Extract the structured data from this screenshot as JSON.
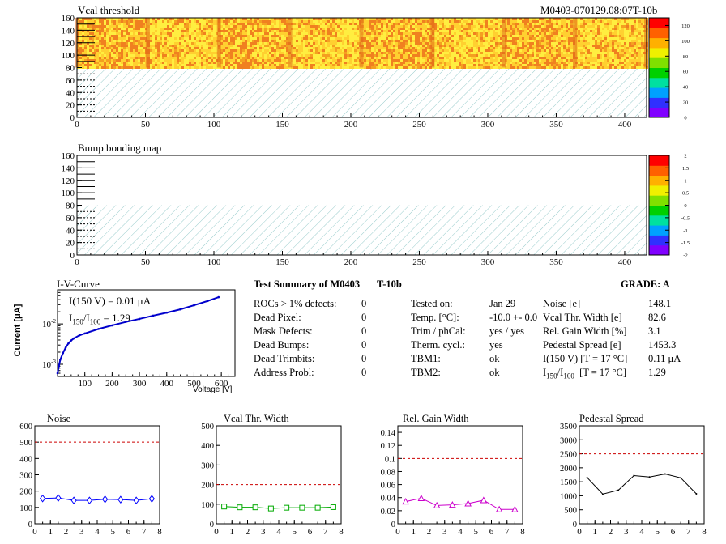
{
  "header": {
    "title": "Vcal threshold",
    "module_id": "M0403-070129.08:07T-10b"
  },
  "bump_map": {
    "title": "Bump bonding map"
  },
  "iv": {
    "title": "I-V-Curve",
    "i150": "I(150 V) = 0.01 μA",
    "ratio_prefix": "I",
    "ratio_sub1": "150",
    "ratio_mid": "/I",
    "ratio_sub2": "100",
    "ratio_value": " = 1.29",
    "ylabel": "Current [μA]",
    "xlabel": "Voltage [V]"
  },
  "summary": {
    "title": "Test Summary of M0403",
    "temp_tag": "T-10b",
    "grade_label": "GRADE:  A",
    "defects": [
      {
        "label": "ROCs > 1% defects:",
        "value": "0"
      },
      {
        "label": "Dead Pixel:",
        "value": "0"
      },
      {
        "label": "Mask Defects:",
        "value": "0"
      },
      {
        "label": "Dead Bumps:",
        "value": "0"
      },
      {
        "label": "Dead Trimbits:",
        "value": "0"
      },
      {
        "label": "Address Probl:",
        "value": "0"
      }
    ],
    "conditions": [
      {
        "label": "Tested on:",
        "value": "Jan 29"
      },
      {
        "label": "Temp. [°C]:",
        "value": "-10.0 +- 0.0"
      },
      {
        "label": "Trim / phCal:",
        "value": "yes / yes"
      },
      {
        "label": "Therm. cycl.:",
        "value": "yes"
      },
      {
        "label": "TBM1:",
        "value": "ok"
      },
      {
        "label": "TBM2:",
        "value": "ok"
      }
    ],
    "results": [
      {
        "label": "Noise [e]",
        "value": "148.1"
      },
      {
        "label": "Vcal Thr. Width [e]",
        "value": "82.6"
      },
      {
        "label": "Rel. Gain Width [%]",
        "value": "3.1"
      },
      {
        "label": "Pedestal Spread [e]",
        "value": "1453.3"
      },
      {
        "label": "I(150 V) [T = 17 °C]",
        "value": "0.11 μA"
      },
      {
        "label_prefix": "I",
        "label_sub1": "150",
        "label_mid": "/I",
        "label_sub2": "100",
        "label_suffix": "  [T = 17 °C]",
        "value": "1.29"
      }
    ]
  },
  "chart_data": [
    {
      "type": "heatmap",
      "title": "Vcal threshold",
      "xlim": [
        0,
        416
      ],
      "ylim": [
        0,
        160
      ],
      "x_ticks": [
        0,
        50,
        100,
        150,
        200,
        250,
        300,
        350,
        400
      ],
      "y_ticks": [
        0,
        20,
        40,
        60,
        80,
        100,
        120,
        140,
        160
      ],
      "filled_region_y": [
        80,
        160
      ],
      "colorbar": {
        "min": 0,
        "max": 130,
        "ticks": [
          0,
          20,
          40,
          60,
          80,
          100,
          120
        ]
      }
    },
    {
      "type": "heatmap",
      "title": "Bump bonding map",
      "xlim": [
        0,
        416
      ],
      "ylim": [
        0,
        160
      ],
      "x_ticks": [
        0,
        50,
        100,
        150,
        200,
        250,
        300,
        350,
        400
      ],
      "y_ticks": [
        0,
        20,
        40,
        60,
        80,
        100,
        120,
        140,
        160
      ],
      "colorbar": {
        "min": -2,
        "max": 2,
        "ticks": [
          -2,
          -1.5,
          -1,
          -0.5,
          0,
          0.5,
          1,
          1.5,
          2
        ]
      }
    },
    {
      "type": "line",
      "title": "I-V-Curve",
      "xlabel": "Voltage [V]",
      "ylabel": "Current [μA]",
      "log_y": true,
      "xlim": [
        0,
        650
      ],
      "ylim": [
        0.0005,
        0.07
      ],
      "x_ticks": [
        100,
        200,
        300,
        400,
        500,
        600
      ],
      "y_ticks": [
        0.001,
        0.01
      ],
      "series": [
        {
          "x": [
            0,
            5,
            10,
            20,
            30,
            40,
            50,
            60,
            80,
            100,
            150,
            200,
            250,
            300,
            350,
            400,
            450,
            500,
            550,
            590
          ],
          "y": [
            0.0006,
            0.0009,
            0.0013,
            0.0019,
            0.0026,
            0.0033,
            0.0039,
            0.0044,
            0.0052,
            0.0058,
            0.0075,
            0.0092,
            0.0112,
            0.0133,
            0.016,
            0.019,
            0.023,
            0.029,
            0.037,
            0.046
          ]
        }
      ]
    },
    {
      "type": "line",
      "title": "Noise",
      "xlim": [
        0,
        8
      ],
      "ylim": [
        0,
        600
      ],
      "x_ticks": [
        0,
        1,
        2,
        3,
        4,
        5,
        6,
        7,
        8
      ],
      "y_ticks": [
        0,
        100,
        200,
        300,
        400,
        500,
        600
      ],
      "threshold": 500,
      "marker": "diamond",
      "color": "#0000ff",
      "series": [
        {
          "x": [
            0.5,
            1.5,
            2.5,
            3.5,
            4.5,
            5.5,
            6.5,
            7.5
          ],
          "y": [
            155,
            158,
            143,
            143,
            150,
            148,
            143,
            153
          ]
        }
      ]
    },
    {
      "type": "line",
      "title": "Vcal Thr. Width",
      "xlim": [
        0,
        8
      ],
      "ylim": [
        0,
        500
      ],
      "x_ticks": [
        0,
        1,
        2,
        3,
        4,
        5,
        6,
        7,
        8
      ],
      "y_ticks": [
        0,
        100,
        200,
        300,
        400,
        500
      ],
      "threshold": 200,
      "marker": "square",
      "color": "#00aa00",
      "series": [
        {
          "x": [
            0.5,
            1.5,
            2.5,
            3.5,
            4.5,
            5.5,
            6.5,
            7.5
          ],
          "y": [
            88,
            84,
            84,
            78,
            82,
            82,
            82,
            85
          ]
        }
      ]
    },
    {
      "type": "line",
      "title": "Rel. Gain Width",
      "xlim": [
        0,
        8
      ],
      "ylim": [
        0,
        0.15
      ],
      "x_ticks": [
        0,
        1,
        2,
        3,
        4,
        5,
        6,
        7,
        8
      ],
      "y_ticks": [
        0,
        0.02,
        0.04,
        0.06,
        0.08,
        0.1,
        0.12,
        0.14
      ],
      "threshold": 0.1,
      "marker": "triangle",
      "color": "#cc00cc",
      "series": [
        {
          "x": [
            0.5,
            1.5,
            2.5,
            3.5,
            4.5,
            5.5,
            6.5,
            7.5
          ],
          "y": [
            0.034,
            0.039,
            0.028,
            0.029,
            0.031,
            0.036,
            0.022,
            0.022
          ]
        }
      ]
    },
    {
      "type": "line",
      "title": "Pedestal Spread",
      "xlim": [
        0,
        8
      ],
      "ylim": [
        0,
        3500
      ],
      "x_ticks": [
        0,
        1,
        2,
        3,
        4,
        5,
        6,
        7,
        8
      ],
      "y_ticks": [
        0,
        500,
        1000,
        1500,
        2000,
        2500,
        3000,
        3500
      ],
      "threshold": 2500,
      "marker": "none",
      "color": "#000000",
      "series": [
        {
          "x": [
            0.5,
            1.5,
            2.5,
            3.5,
            4.5,
            5.5,
            6.5,
            7.5
          ],
          "y": [
            1650,
            1060,
            1200,
            1720,
            1670,
            1780,
            1640,
            1070
          ]
        }
      ]
    }
  ]
}
